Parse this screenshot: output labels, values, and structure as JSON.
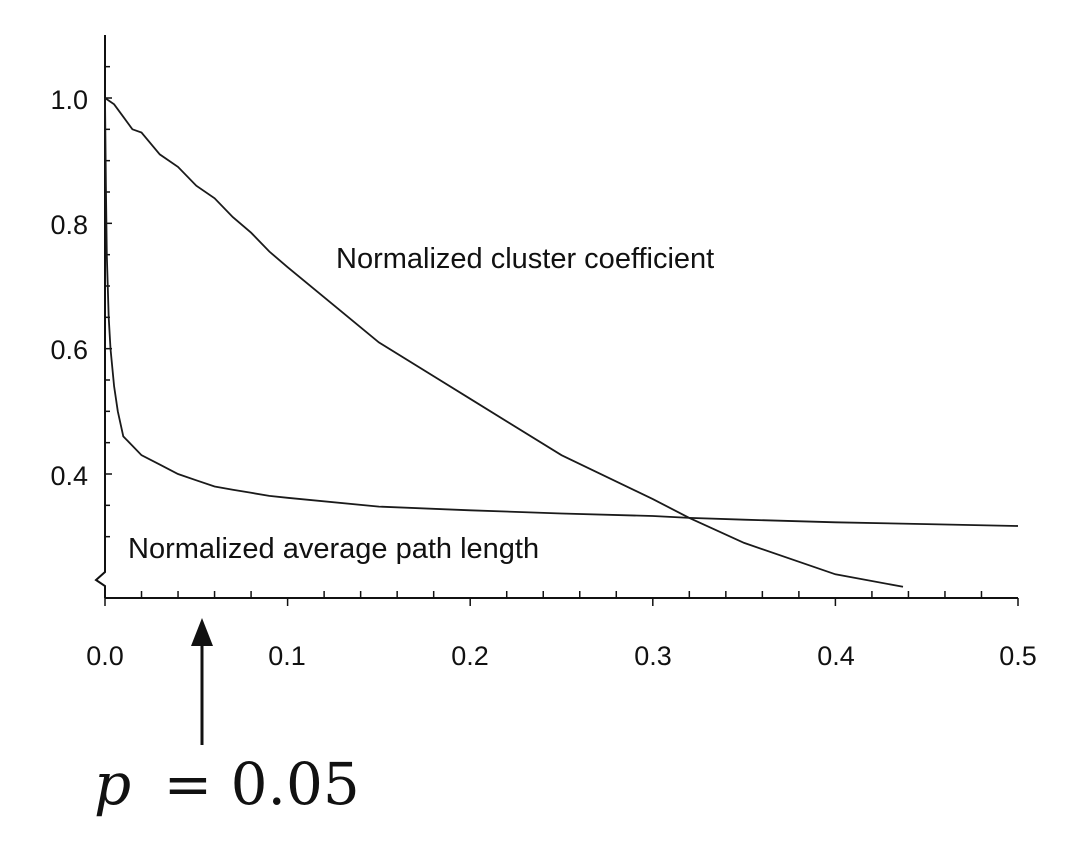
{
  "chart_data": {
    "type": "line",
    "title": "",
    "xlabel": "",
    "ylabel": "",
    "xlim": [
      0,
      0.5
    ],
    "ylim": [
      0.22,
      1.1
    ],
    "x_ticks": [
      "0.0",
      "0.1",
      "0.2",
      "0.3",
      "0.4",
      "0.5"
    ],
    "y_ticks": [
      "0.4",
      "0.6",
      "0.8",
      "1.0"
    ],
    "grid": false,
    "legend": "none",
    "y_axis_break": true,
    "series": [
      {
        "name": "Normalized cluster coefficient",
        "x": [
          0,
          0.005,
          0.01,
          0.015,
          0.02,
          0.03,
          0.04,
          0.05,
          0.06,
          0.07,
          0.08,
          0.09,
          0.1,
          0.125,
          0.15,
          0.2,
          0.25,
          0.3,
          0.32,
          0.35,
          0.4,
          0.437
        ],
        "y": [
          1.0,
          0.99,
          0.97,
          0.95,
          0.945,
          0.91,
          0.89,
          0.86,
          0.84,
          0.81,
          0.785,
          0.755,
          0.73,
          0.67,
          0.61,
          0.52,
          0.43,
          0.36,
          0.33,
          0.29,
          0.24,
          0.22
        ]
      },
      {
        "name": "Normalized average path length",
        "x": [
          0,
          0.0005,
          0.001,
          0.002,
          0.003,
          0.005,
          0.007,
          0.01,
          0.015,
          0.02,
          0.03,
          0.04,
          0.05,
          0.06,
          0.07,
          0.08,
          0.09,
          0.1,
          0.15,
          0.2,
          0.25,
          0.3,
          0.32,
          0.35,
          0.4,
          0.45,
          0.5
        ],
        "y": [
          1.0,
          0.86,
          0.75,
          0.65,
          0.6,
          0.54,
          0.5,
          0.46,
          0.445,
          0.43,
          0.415,
          0.4,
          0.39,
          0.38,
          0.375,
          0.37,
          0.365,
          0.362,
          0.348,
          0.342,
          0.337,
          0.333,
          0.33,
          0.327,
          0.323,
          0.32,
          0.317
        ]
      }
    ],
    "annotations": [
      {
        "kind": "arrow",
        "x": 0.05,
        "text_var": "p",
        "text_rest": "= 0.05"
      }
    ]
  }
}
